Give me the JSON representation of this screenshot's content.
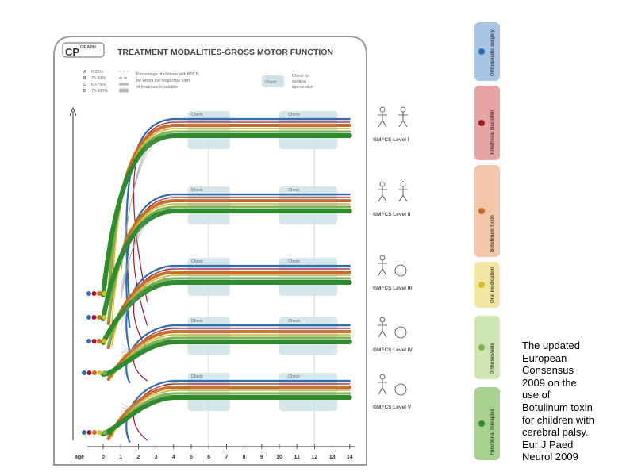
{
  "header": {
    "logo_cp": "CP",
    "logo_graph": "GRAPH",
    "title": "TREATMENT MODALITIES-GROSS MOTOR FUNCTION"
  },
  "legend": {
    "items": [
      {
        "letter": "A",
        "range": "0-25%"
      },
      {
        "letter": "B",
        "range": "25-50%"
      },
      {
        "letter": "C",
        "range": "50-75%"
      },
      {
        "letter": "D",
        "range": "75-100%"
      }
    ],
    "description": [
      "Percentage of children with BSCP,",
      "for whom the respective form",
      "of treatment is suitable"
    ],
    "check_label": "Check",
    "check_description": [
      "Check for",
      "surgical",
      "intervention"
    ]
  },
  "x_axis": {
    "label": "age",
    "ticks": [
      "0",
      "1",
      "2",
      "3",
      "4",
      "5",
      "6",
      "7",
      "8",
      "9",
      "10",
      "11",
      "12",
      "13",
      "14"
    ]
  },
  "levels": [
    {
      "label": "GMFCS Level I"
    },
    {
      "label": "GMFCS Level II"
    },
    {
      "label": "GMFCS Level III"
    },
    {
      "label": "GMFCS Level IV"
    },
    {
      "label": "GMFCS Level V"
    }
  ],
  "side_tabs": [
    {
      "label": "Orthopaedic surgery",
      "color": "#a9c6e6",
      "dot": "#2f6db5"
    },
    {
      "label": "Intrathecal Baclofen",
      "color": "#e6a3a3",
      "dot": "#a0182a"
    },
    {
      "label": "Botulinum Toxin",
      "color": "#f2c6a8",
      "dot": "#d06a21"
    },
    {
      "label": "Oral medication",
      "color": "#f2e7a2",
      "dot": "#d8c020"
    },
    {
      "label": "Orthoses/aids",
      "color": "#cfe5b4",
      "dot": "#7ab648"
    },
    {
      "label": "Functional therapies",
      "color": "#a6d18e",
      "dot": "#2e8b2e"
    }
  ],
  "colors": {
    "surgery": "#2f6db5",
    "baclofen": "#a0182a",
    "botulinum": "#d06a21",
    "oral": "#d8c020",
    "orthoses": "#7ab648",
    "therapy": "#2e8b2e",
    "check_box": "#cfe3e6"
  },
  "caption": {
    "lines": [
      "The updated",
      "European",
      "Consensus",
      "2009 on the",
      "use of",
      "Botulinum toxin",
      "for children with",
      "cerebral palsy.",
      "Eur J Paed",
      "Neurol 2009"
    ]
  }
}
